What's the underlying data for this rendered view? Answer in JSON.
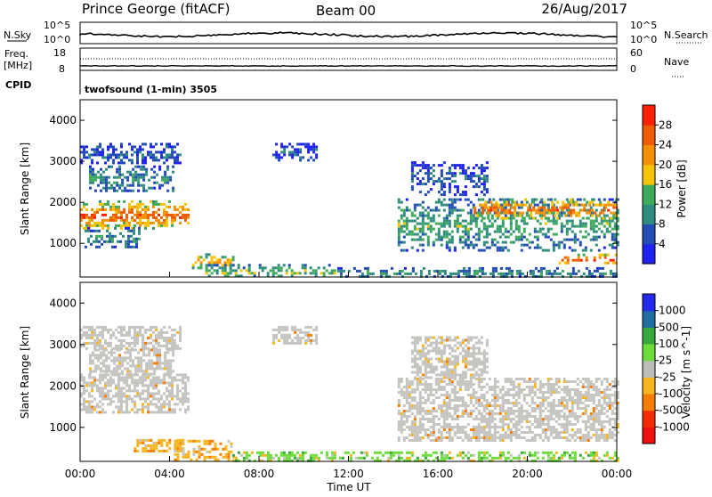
{
  "header": {
    "station": "Prince George (fitACF)",
    "beam": "Beam 00",
    "date": "26/Aug/2017"
  },
  "status_panel": {
    "left_top_label": "N.Sky",
    "left_top_ticks": [
      "10^5",
      "10^0"
    ],
    "right_top_label": "N.Search",
    "right_top_ticks": [
      "10^5",
      "10^0"
    ],
    "left_mid_label_1": "Freq.",
    "left_mid_label_2": "[MHz]",
    "left_mid_ticks": [
      "18",
      "8"
    ],
    "right_mid_label": "Nave",
    "right_mid_ticks": [
      "60",
      "0"
    ],
    "cpid_label": "CPID",
    "cpid_value": "twofsound (1-min) 3505"
  },
  "colors": {
    "power_scale": [
      "#1f21f0",
      "#234cb4",
      "#2f8c7f",
      "#3faa5b",
      "#f5c400",
      "#f59100",
      "#ef5b00",
      "#ff2200"
    ],
    "velocity_scale": [
      "#2528ee",
      "#1f6ea1",
      "#37a63b",
      "#6cdc3b",
      "#bcbcb9",
      "#f7b51f",
      "#f57d00",
      "#f52a00",
      "#f11010"
    ],
    "ground_scatter": "#c5c4c1"
  },
  "chart_data": [
    {
      "type": "heatmap",
      "title": "",
      "xlabel": "Time UT",
      "ylabel": "Slant Range [km]",
      "colorbar_label": "Power [dB]",
      "colorbar_ticks": [
        "28",
        "24",
        "20",
        "16",
        "12",
        "8",
        "4"
      ],
      "x_ticks": [
        "00:00",
        "04:00",
        "08:00",
        "12:00",
        "16:00",
        "20:00",
        "00:00"
      ],
      "y_ticks": [
        "1000",
        "2000",
        "3000",
        "4000"
      ],
      "xlim": [
        0,
        24
      ],
      "ylim": [
        180,
        4500
      ],
      "clim": [
        0,
        32
      ],
      "regions": [
        {
          "t0": 0.0,
          "t1": 4.8,
          "r0": 1350,
          "r1": 2050,
          "power": 24
        },
        {
          "t0": 0.4,
          "t1": 4.2,
          "r0": 2300,
          "r1": 2900,
          "power": 10
        },
        {
          "t0": 0.0,
          "t1": 4.5,
          "r0": 2950,
          "r1": 3450,
          "power": 6
        },
        {
          "t0": 0.2,
          "t1": 2.6,
          "r0": 900,
          "r1": 1400,
          "power": 10
        },
        {
          "t0": 5.0,
          "t1": 6.8,
          "r0": 420,
          "r1": 760,
          "power": 20
        },
        {
          "t0": 5.6,
          "t1": 11.4,
          "r0": 180,
          "r1": 500,
          "power": 14
        },
        {
          "t0": 8.6,
          "t1": 10.6,
          "r0": 3000,
          "r1": 3450,
          "power": 6
        },
        {
          "t0": 14.2,
          "t1": 24.0,
          "r0": 850,
          "r1": 2100,
          "power": 12
        },
        {
          "t0": 17.6,
          "t1": 24.0,
          "r0": 1600,
          "r1": 2100,
          "power": 24
        },
        {
          "t0": 21.4,
          "t1": 24.0,
          "r0": 520,
          "r1": 750,
          "power": 28
        },
        {
          "t0": 14.8,
          "t1": 18.2,
          "r0": 2200,
          "r1": 3000,
          "power": 6
        },
        {
          "t0": 11.5,
          "t1": 24.0,
          "r0": 180,
          "r1": 420,
          "power": 10
        }
      ]
    },
    {
      "type": "heatmap",
      "title": "",
      "xlabel": "Time UT",
      "ylabel": "Slant Range [km]",
      "colorbar_label": "Velocity [m s^-1]",
      "colorbar_ticks": [
        "1000",
        "500",
        "100",
        "25",
        "-25",
        "-100",
        "-500",
        "-1000"
      ],
      "x_ticks": [
        "00:00",
        "04:00",
        "08:00",
        "12:00",
        "16:00",
        "20:00",
        "00:00"
      ],
      "y_ticks": [
        "1000",
        "2000",
        "3000",
        "4000"
      ],
      "xlim": [
        0,
        24
      ],
      "ylim": [
        180,
        4500
      ],
      "clim": [
        -1000,
        1000
      ],
      "regions": [
        {
          "t0": 0.0,
          "t1": 4.8,
          "r0": 1350,
          "r1": 2300,
          "velocity": 0
        },
        {
          "t0": 0.0,
          "t1": 4.5,
          "r0": 2900,
          "r1": 3450,
          "velocity": 0
        },
        {
          "t0": 0.4,
          "t1": 4.2,
          "r0": 2300,
          "r1": 2900,
          "velocity": 0
        },
        {
          "t0": 2.4,
          "t1": 4.6,
          "r0": 420,
          "r1": 720,
          "velocity": -150
        },
        {
          "t0": 4.2,
          "t1": 6.9,
          "r0": 200,
          "r1": 700,
          "velocity": -120
        },
        {
          "t0": 8.6,
          "t1": 10.6,
          "r0": 3000,
          "r1": 3450,
          "velocity": 0
        },
        {
          "t0": 14.2,
          "t1": 24.0,
          "r0": 700,
          "r1": 2200,
          "velocity": 0
        },
        {
          "t0": 14.8,
          "t1": 18.2,
          "r0": 2200,
          "r1": 3200,
          "velocity": 0
        },
        {
          "t0": 6.8,
          "t1": 24.0,
          "r0": 180,
          "r1": 420,
          "velocity": 60
        }
      ]
    }
  ]
}
